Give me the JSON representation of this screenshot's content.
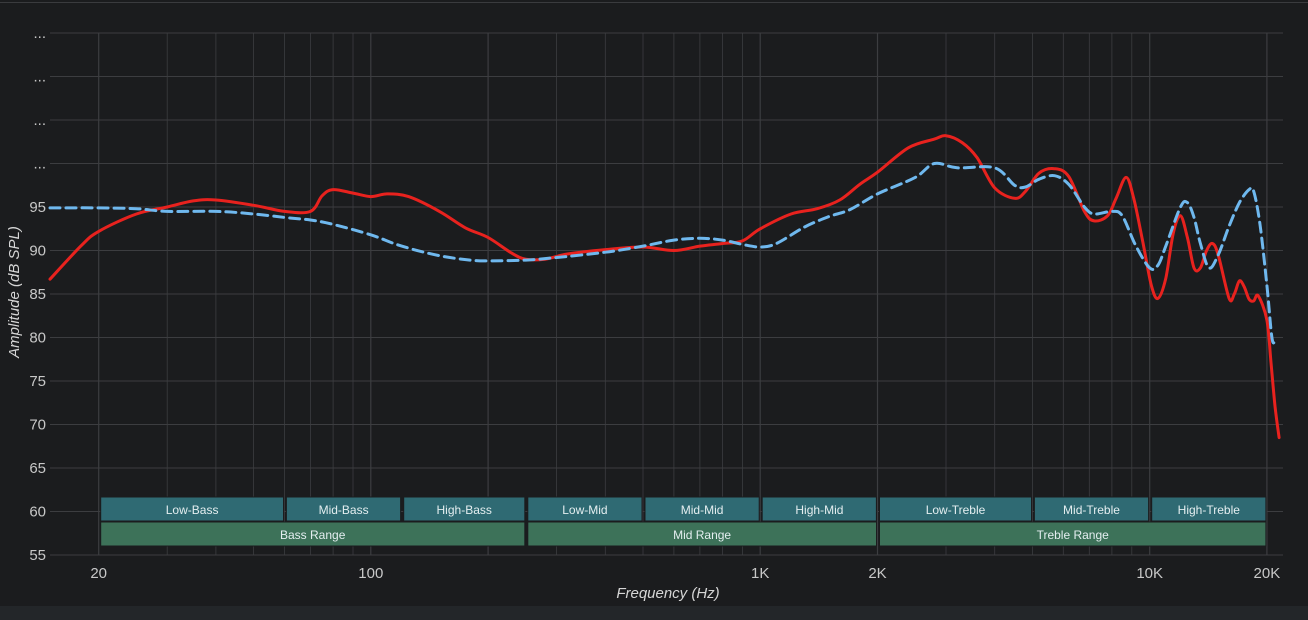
{
  "chart_data": {
    "type": "line",
    "xlabel": "Frequency (Hz)",
    "ylabel": "Amplitude (dB SPL)",
    "x_scale": "log",
    "xlim": [
      15,
      22000
    ],
    "ylim": [
      55,
      115
    ],
    "grid": true,
    "x_ticks": [
      {
        "value": 20,
        "label": "20"
      },
      {
        "value": 100,
        "label": "100"
      },
      {
        "value": 1000,
        "label": "1K"
      },
      {
        "value": 2000,
        "label": "2K"
      },
      {
        "value": 10000,
        "label": "10K"
      },
      {
        "value": 20000,
        "label": "20K"
      }
    ],
    "y_ticks": [
      {
        "value": 55,
        "label": "55"
      },
      {
        "value": 60,
        "label": "60"
      },
      {
        "value": 65,
        "label": "65"
      },
      {
        "value": 70,
        "label": "70"
      },
      {
        "value": 75,
        "label": "75"
      },
      {
        "value": 80,
        "label": "80"
      },
      {
        "value": 85,
        "label": "85"
      },
      {
        "value": 90,
        "label": "90"
      },
      {
        "value": 95,
        "label": "95"
      },
      {
        "value": 100,
        "label": "..."
      },
      {
        "value": 105,
        "label": "..."
      },
      {
        "value": 110,
        "label": "..."
      },
      {
        "value": 115,
        "label": "..."
      }
    ],
    "series": [
      {
        "color": "#e8221e",
        "style": "solid",
        "points": [
          [
            15,
            86.7
          ],
          [
            18,
            90.5
          ],
          [
            20,
            92.2
          ],
          [
            25,
            94.2
          ],
          [
            30,
            95.0
          ],
          [
            35,
            95.7
          ],
          [
            40,
            95.8
          ],
          [
            50,
            95.2
          ],
          [
            60,
            94.5
          ],
          [
            70,
            94.5
          ],
          [
            75,
            96.3
          ],
          [
            80,
            97.0
          ],
          [
            90,
            96.6
          ],
          [
            100,
            96.2
          ],
          [
            110,
            96.5
          ],
          [
            125,
            96.2
          ],
          [
            150,
            94.5
          ],
          [
            175,
            92.6
          ],
          [
            200,
            91.5
          ],
          [
            230,
            89.7
          ],
          [
            250,
            89.0
          ],
          [
            280,
            89.0
          ],
          [
            320,
            89.6
          ],
          [
            400,
            90.1
          ],
          [
            500,
            90.4
          ],
          [
            600,
            90.0
          ],
          [
            700,
            90.5
          ],
          [
            800,
            90.8
          ],
          [
            900,
            91.1
          ],
          [
            1000,
            92.5
          ],
          [
            1200,
            94.2
          ],
          [
            1400,
            94.8
          ],
          [
            1600,
            95.8
          ],
          [
            1800,
            97.6
          ],
          [
            2000,
            99.0
          ],
          [
            2400,
            101.8
          ],
          [
            2800,
            102.8
          ],
          [
            3000,
            103.2
          ],
          [
            3300,
            102.4
          ],
          [
            3600,
            100.7
          ],
          [
            4000,
            97.2
          ],
          [
            4500,
            96.0
          ],
          [
            4800,
            96.8
          ],
          [
            5200,
            98.9
          ],
          [
            5700,
            99.4
          ],
          [
            6200,
            98.5
          ],
          [
            6800,
            94.5
          ],
          [
            7200,
            93.4
          ],
          [
            7800,
            94.0
          ],
          [
            8200,
            96.0
          ],
          [
            8700,
            98.4
          ],
          [
            9100,
            96.0
          ],
          [
            9600,
            91.0
          ],
          [
            10100,
            86.0
          ],
          [
            10500,
            84.5
          ],
          [
            11000,
            86.8
          ],
          [
            11500,
            92.0
          ],
          [
            12000,
            94.0
          ],
          [
            12500,
            91.5
          ],
          [
            13000,
            88.0
          ],
          [
            13500,
            88.0
          ],
          [
            14000,
            90.0
          ],
          [
            14500,
            90.8
          ],
          [
            15000,
            89.5
          ],
          [
            16000,
            84.5
          ],
          [
            16500,
            85.0
          ],
          [
            17000,
            86.5
          ],
          [
            17500,
            85.8
          ],
          [
            18000,
            84.4
          ],
          [
            18500,
            84.2
          ],
          [
            19000,
            84.8
          ],
          [
            20000,
            82.0
          ],
          [
            20500,
            77.0
          ],
          [
            21000,
            72.0
          ],
          [
            21500,
            68.5
          ]
        ]
      },
      {
        "color": "#6fb8ee",
        "style": "dashed",
        "points": [
          [
            15,
            94.9
          ],
          [
            20,
            94.9
          ],
          [
            25,
            94.8
          ],
          [
            30,
            94.5
          ],
          [
            40,
            94.5
          ],
          [
            50,
            94.2
          ],
          [
            60,
            93.8
          ],
          [
            70,
            93.5
          ],
          [
            80,
            93.0
          ],
          [
            100,
            91.8
          ],
          [
            120,
            90.5
          ],
          [
            150,
            89.4
          ],
          [
            180,
            88.9
          ],
          [
            200,
            88.8
          ],
          [
            250,
            88.9
          ],
          [
            300,
            89.2
          ],
          [
            400,
            89.8
          ],
          [
            500,
            90.5
          ],
          [
            600,
            91.2
          ],
          [
            700,
            91.4
          ],
          [
            800,
            91.2
          ],
          [
            900,
            90.7
          ],
          [
            1000,
            90.4
          ],
          [
            1100,
            90.8
          ],
          [
            1300,
            92.7
          ],
          [
            1500,
            93.9
          ],
          [
            1700,
            94.7
          ],
          [
            2000,
            96.5
          ],
          [
            2500,
            98.4
          ],
          [
            2800,
            100.0
          ],
          [
            3200,
            99.5
          ],
          [
            4000,
            99.5
          ],
          [
            4500,
            97.5
          ],
          [
            4800,
            97.3
          ],
          [
            5200,
            98.2
          ],
          [
            5700,
            98.6
          ],
          [
            6200,
            97.6
          ],
          [
            6800,
            95.0
          ],
          [
            7200,
            94.2
          ],
          [
            8000,
            94.5
          ],
          [
            8500,
            94.0
          ],
          [
            9200,
            90.6
          ],
          [
            10000,
            88.0
          ],
          [
            10500,
            88.3
          ],
          [
            11000,
            90.5
          ],
          [
            12000,
            95.0
          ],
          [
            12500,
            95.5
          ],
          [
            13000,
            93.8
          ],
          [
            13500,
            90.8
          ],
          [
            14200,
            88.0
          ],
          [
            15000,
            89.5
          ],
          [
            16000,
            92.8
          ],
          [
            17000,
            95.5
          ],
          [
            18000,
            97.0
          ],
          [
            18500,
            96.8
          ],
          [
            19200,
            93.0
          ],
          [
            20000,
            86.0
          ],
          [
            20600,
            80.0
          ],
          [
            21000,
            79.5
          ],
          [
            21500,
            79.5
          ]
        ]
      }
    ],
    "bands": [
      {
        "label": "Low-Bass",
        "from": 20,
        "to": 60,
        "row": 1
      },
      {
        "label": "Mid-Bass",
        "from": 60,
        "to": 120,
        "row": 1
      },
      {
        "label": "High-Bass",
        "from": 120,
        "to": 250,
        "row": 1
      },
      {
        "label": "Low-Mid",
        "from": 250,
        "to": 500,
        "row": 1
      },
      {
        "label": "Mid-Mid",
        "from": 500,
        "to": 1000,
        "row": 1
      },
      {
        "label": "High-Mid",
        "from": 1000,
        "to": 2000,
        "row": 1
      },
      {
        "label": "Low-Treble",
        "from": 2000,
        "to": 5000,
        "row": 1
      },
      {
        "label": "Mid-Treble",
        "from": 5000,
        "to": 10000,
        "row": 1
      },
      {
        "label": "High-Treble",
        "from": 10000,
        "to": 20000,
        "row": 1
      },
      {
        "label": "Bass Range",
        "from": 20,
        "to": 250,
        "row": 2
      },
      {
        "label": "Mid Range",
        "from": 250,
        "to": 2000,
        "row": 2
      },
      {
        "label": "Treble Range",
        "from": 2000,
        "to": 20000,
        "row": 2
      }
    ],
    "colors": {
      "band_row1": "#2f6a73",
      "band_row2": "#3d7259",
      "grid": "#3c3d40"
    }
  }
}
